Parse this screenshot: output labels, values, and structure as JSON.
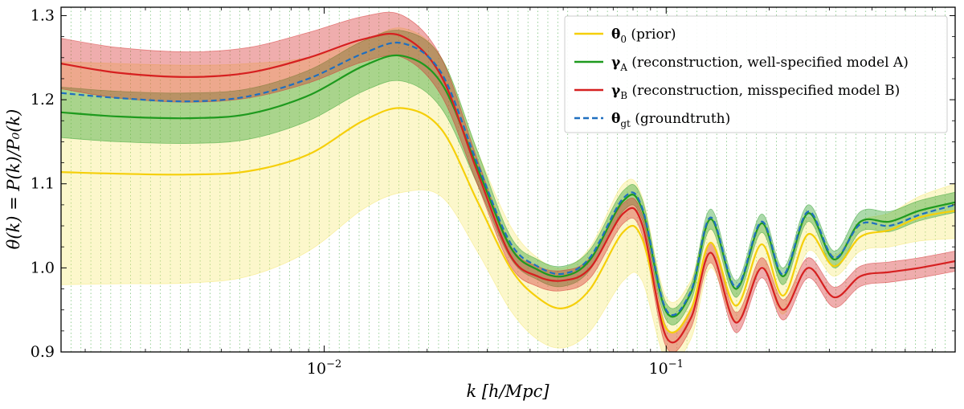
{
  "chart_data": {
    "type": "line",
    "xlabel": "k [h/Mpc]",
    "ylabel": "θ(k) = P(k)/P₀(k)",
    "xscale": "log",
    "xlim": [
      0.0017,
      0.7
    ],
    "ylim": [
      0.9,
      1.31
    ],
    "xticks": [
      {
        "value": 0.01,
        "label": "10",
        "exp": "−2"
      },
      {
        "value": 0.1,
        "label": "10",
        "exp": "−1"
      }
    ],
    "yticks": [
      {
        "value": 0.9,
        "label": "0.9"
      },
      {
        "value": 1.0,
        "label": "1.0"
      },
      {
        "value": 1.1,
        "label": "1.1"
      },
      {
        "value": 1.2,
        "label": "1.2"
      },
      {
        "value": 1.3,
        "label": "1.3"
      }
    ],
    "legend_position": "top-right",
    "grid": "dotted vertical green lines at sampled k bins",
    "series": [
      {
        "name": "θ0 (prior)",
        "legend_symbol": "θ",
        "legend_sub": "0",
        "legend_rest": " (prior)",
        "color": "#f5cf0a",
        "band_color": "#f7e76a",
        "band_opacity": 0.35,
        "style": "solid",
        "x": [
          0.0017,
          0.0025,
          0.004,
          0.006,
          0.009,
          0.013,
          0.017,
          0.022,
          0.028,
          0.035,
          0.042,
          0.05,
          0.06,
          0.075,
          0.085,
          0.1,
          0.118,
          0.135,
          0.16,
          0.19,
          0.22,
          0.26,
          0.31,
          0.37,
          0.45,
          0.55,
          0.7
        ],
        "y": [
          1.114,
          1.112,
          1.111,
          1.115,
          1.135,
          1.175,
          1.19,
          1.165,
          1.08,
          1.0,
          0.965,
          0.952,
          0.975,
          1.043,
          1.035,
          0.928,
          0.95,
          1.03,
          0.955,
          1.028,
          0.967,
          1.04,
          1.002,
          1.037,
          1.045,
          1.06,
          1.068
        ],
        "lower": [
          0.98,
          0.981,
          0.982,
          0.99,
          1.02,
          1.07,
          1.09,
          1.085,
          1.02,
          0.95,
          0.915,
          0.905,
          0.925,
          0.985,
          0.985,
          0.89,
          0.915,
          1.0,
          0.935,
          1.003,
          0.945,
          1.02,
          0.99,
          1.02,
          1.025,
          1.032,
          1.035
        ],
        "upper": [
          1.245,
          1.243,
          1.241,
          1.243,
          1.25,
          1.27,
          1.285,
          1.25,
          1.14,
          1.05,
          1.012,
          1.0,
          1.025,
          1.1,
          1.085,
          0.965,
          0.985,
          1.06,
          0.975,
          1.053,
          0.99,
          1.06,
          1.015,
          1.055,
          1.065,
          1.085,
          1.1
        ]
      },
      {
        "name": "γA (reconstruction, well-specified model A)",
        "legend_symbol": "γ",
        "legend_sub": "A",
        "legend_rest": " (reconstruction, well-specified model A)",
        "color": "#1e9a1e",
        "band_color": "#2ca02c",
        "band_opacity": 0.4,
        "style": "solid",
        "x": [
          0.0017,
          0.0025,
          0.004,
          0.006,
          0.009,
          0.013,
          0.017,
          0.022,
          0.028,
          0.035,
          0.042,
          0.05,
          0.06,
          0.075,
          0.085,
          0.1,
          0.118,
          0.135,
          0.16,
          0.19,
          0.22,
          0.26,
          0.31,
          0.37,
          0.45,
          0.55,
          0.7
        ],
        "y": [
          1.185,
          1.18,
          1.178,
          1.183,
          1.205,
          1.24,
          1.252,
          1.22,
          1.12,
          1.025,
          0.998,
          0.99,
          1.01,
          1.08,
          1.07,
          0.948,
          0.97,
          1.058,
          0.975,
          1.053,
          0.99,
          1.065,
          1.01,
          1.055,
          1.055,
          1.068,
          1.078
        ],
        "lower": [
          1.155,
          1.15,
          1.148,
          1.153,
          1.175,
          1.21,
          1.222,
          1.19,
          1.1,
          1.012,
          0.986,
          0.978,
          0.998,
          1.068,
          1.058,
          0.938,
          0.96,
          1.046,
          0.965,
          1.042,
          0.98,
          1.055,
          1.0,
          1.043,
          1.043,
          1.056,
          1.066
        ],
        "upper": [
          1.215,
          1.21,
          1.208,
          1.213,
          1.235,
          1.27,
          1.282,
          1.25,
          1.14,
          1.038,
          1.01,
          1.002,
          1.022,
          1.092,
          1.082,
          0.958,
          0.98,
          1.07,
          0.985,
          1.064,
          1.0,
          1.075,
          1.02,
          1.067,
          1.067,
          1.08,
          1.09
        ]
      },
      {
        "name": "γB (reconstruction, misspecified model B)",
        "legend_symbol": "γ",
        "legend_sub": "B",
        "legend_rest": " (reconstruction, misspecified model B)",
        "color": "#d62020",
        "band_color": "#d62728",
        "band_opacity": 0.38,
        "style": "solid",
        "x": [
          0.0017,
          0.0025,
          0.004,
          0.006,
          0.009,
          0.013,
          0.017,
          0.022,
          0.028,
          0.035,
          0.042,
          0.05,
          0.06,
          0.075,
          0.085,
          0.1,
          0.118,
          0.135,
          0.16,
          0.19,
          0.22,
          0.26,
          0.31,
          0.37,
          0.45,
          0.55,
          0.7
        ],
        "y": [
          1.243,
          1.232,
          1.227,
          1.232,
          1.25,
          1.272,
          1.275,
          1.228,
          1.115,
          1.015,
          0.99,
          0.985,
          1.0,
          1.065,
          1.052,
          0.918,
          0.94,
          1.018,
          0.935,
          1.0,
          0.95,
          1.0,
          0.965,
          0.99,
          0.995,
          1.0,
          1.008
        ],
        "lower": [
          1.213,
          1.202,
          1.197,
          1.202,
          1.22,
          1.245,
          1.25,
          1.205,
          1.1,
          1.003,
          0.978,
          0.973,
          0.988,
          1.053,
          1.04,
          0.906,
          0.928,
          1.006,
          0.923,
          0.988,
          0.938,
          0.988,
          0.953,
          0.978,
          0.983,
          0.988,
          0.996
        ],
        "upper": [
          1.273,
          1.262,
          1.257,
          1.262,
          1.28,
          1.299,
          1.3,
          1.25,
          1.13,
          1.027,
          1.002,
          0.997,
          1.012,
          1.077,
          1.064,
          0.93,
          0.952,
          1.03,
          0.947,
          1.012,
          0.962,
          1.012,
          0.977,
          1.002,
          1.007,
          1.012,
          1.02
        ]
      },
      {
        "name": "θgt (groundtruth)",
        "legend_symbol": "θ",
        "legend_sub": "gt",
        "legend_rest": " (groundtruth)",
        "color": "#1f6fc0",
        "style": "dashed",
        "x": [
          0.0017,
          0.0025,
          0.004,
          0.006,
          0.009,
          0.013,
          0.017,
          0.022,
          0.028,
          0.035,
          0.042,
          0.05,
          0.06,
          0.075,
          0.085,
          0.1,
          0.118,
          0.135,
          0.16,
          0.19,
          0.22,
          0.26,
          0.31,
          0.37,
          0.45,
          0.55,
          0.7
        ],
        "y": [
          1.208,
          1.202,
          1.198,
          1.204,
          1.225,
          1.255,
          1.267,
          1.232,
          1.125,
          1.03,
          1.002,
          0.993,
          1.013,
          1.083,
          1.072,
          0.95,
          0.972,
          1.06,
          0.977,
          1.055,
          0.992,
          1.067,
          1.012,
          1.052,
          1.05,
          1.063,
          1.075
        ]
      }
    ]
  }
}
